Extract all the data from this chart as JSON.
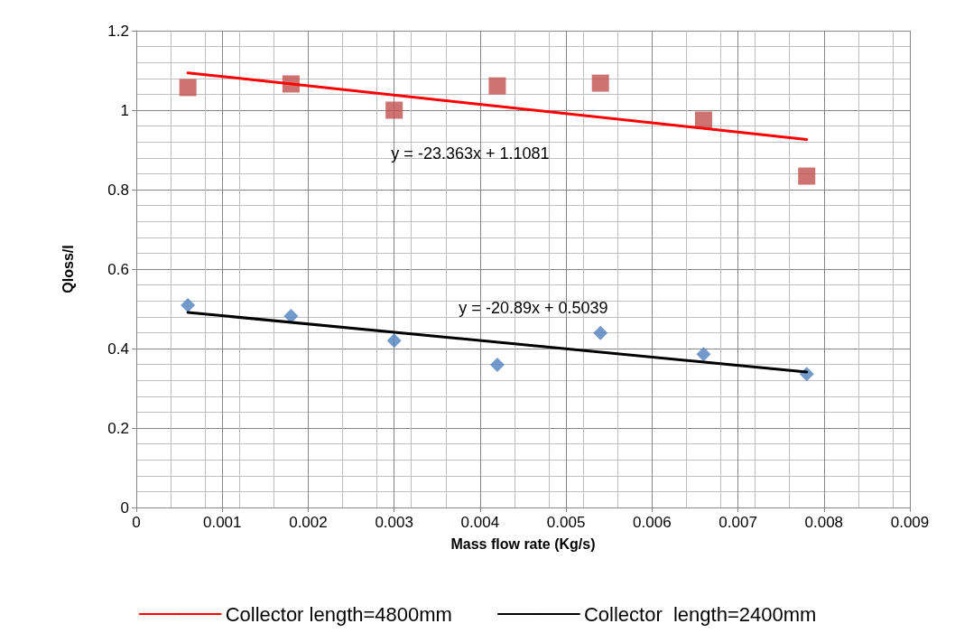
{
  "chart_data": {
    "type": "scatter",
    "xlabel": "Mass flow rate (Kg/s)",
    "ylabel": "Qloss/I",
    "xlim": [
      0,
      0.009
    ],
    "xticks": [
      0,
      0.001,
      0.002,
      0.003,
      0.004,
      0.005,
      0.006,
      0.007,
      0.008,
      0.009
    ],
    "ylim": [
      0,
      1.2
    ],
    "yticks": [
      0,
      0.2,
      0.4,
      0.6,
      0.8,
      1,
      1.2
    ],
    "grid": true,
    "legend": "bottom",
    "series": [
      {
        "marker": "square",
        "color": "#c0504d",
        "x": [
          0.0006,
          0.0018,
          0.003,
          0.0042,
          0.0054,
          0.0066,
          0.0078
        ],
        "values": [
          1.057,
          1.066,
          1.0,
          1.061,
          1.068,
          0.975,
          0.834
        ]
      },
      {
        "marker": "diamond",
        "color": "#4f81bd",
        "x": [
          0.0006,
          0.0018,
          0.003,
          0.0042,
          0.0054,
          0.0066,
          0.0078
        ],
        "values": [
          0.509,
          0.482,
          0.42,
          0.359,
          0.439,
          0.386,
          0.336
        ]
      },
      {
        "type": "line",
        "name": "Collector length=4800mm",
        "color": "#ff0000",
        "marker": "none",
        "line_style": "solid",
        "x": [
          0.0006,
          0.0078
        ],
        "values": [
          1.094,
          0.926
        ]
      },
      {
        "type": "line",
        "name": "Collector  length=2400mm",
        "color": "#000000",
        "marker": "none",
        "line_style": "solid",
        "x": [
          0.0006,
          0.0078
        ],
        "values": [
          0.491,
          0.341
        ]
      }
    ],
    "annotations": [
      "y = -23.363x + 1.1081",
      "y = -20.89x + 0.5039"
    ]
  }
}
